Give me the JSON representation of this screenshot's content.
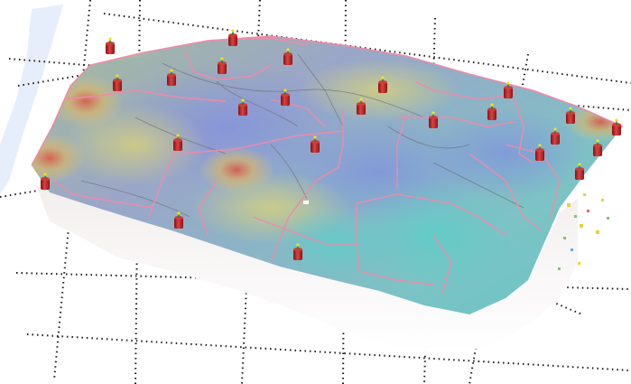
{
  "viewer": {
    "mode": "3d-terrain",
    "overlay": "elevation-heatmap",
    "colors": {
      "background": "#ffffff",
      "grid": "#1a1a1a",
      "terrain_low": "#5fc6c6",
      "terrain_mid": "#8fa6d6",
      "terrain_high": "#d9c87a",
      "terrain_peak": "#d9684e",
      "boundaries": "#f08aa8",
      "faults": "#6f6f6f",
      "marker": "#c0262d",
      "marker_tip": "#f2e21a",
      "base": "#f2eeee"
    },
    "marker_icon": "red-cylinder-marker-icon"
  }
}
